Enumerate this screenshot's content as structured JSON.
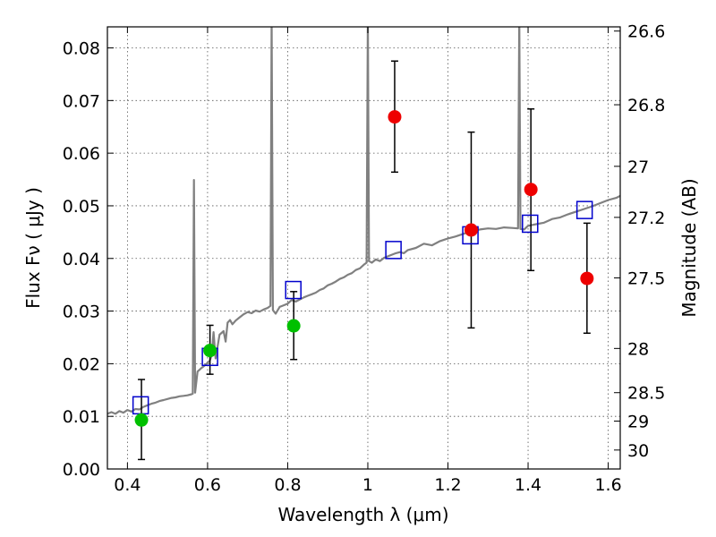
{
  "chart_data": {
    "type": "scatter",
    "xlabel": "Wavelength  λ (μm)",
    "ylabel": "Flux  Fν  ( μJy )",
    "y2label": "Magnitude (AB)",
    "xlim": [
      0.35,
      1.63
    ],
    "ylim": [
      0.0,
      0.084
    ],
    "grid": true,
    "x_ticks": [
      0.4,
      0.6,
      0.8,
      1.0,
      1.2,
      1.4,
      1.6
    ],
    "x_tick_labels": [
      "0.4",
      "0.6",
      "0.8",
      "1",
      "1.2",
      "1.4",
      "1.6"
    ],
    "y_ticks": [
      0.0,
      0.01,
      0.02,
      0.03,
      0.04,
      0.05,
      0.06,
      0.07,
      0.08
    ],
    "y_tick_labels": [
      "0.00",
      "0.01",
      "0.02",
      "0.03",
      "0.04",
      "0.05",
      "0.06",
      "0.07",
      "0.08"
    ],
    "y2_ticks": [
      {
        "label": "26.6",
        "flux": 0.0832
      },
      {
        "label": "26.8",
        "flux": 0.0692
      },
      {
        "label": "27",
        "flux": 0.0575
      },
      {
        "label": "27.2",
        "flux": 0.0478
      },
      {
        "label": "27.5",
        "flux": 0.0363
      },
      {
        "label": "28",
        "flux": 0.0229
      },
      {
        "label": "28.5",
        "flux": 0.0145
      },
      {
        "label": "29",
        "flux": 0.0091
      },
      {
        "label": "30",
        "flux": 0.0036
      }
    ],
    "model_spectrum": [
      [
        0.35,
        0.0105
      ],
      [
        0.36,
        0.0108
      ],
      [
        0.37,
        0.0105
      ],
      [
        0.38,
        0.011
      ],
      [
        0.39,
        0.0107
      ],
      [
        0.4,
        0.0112
      ],
      [
        0.41,
        0.0109
      ],
      [
        0.42,
        0.0114
      ],
      [
        0.43,
        0.0113
      ],
      [
        0.44,
        0.0118
      ],
      [
        0.45,
        0.0121
      ],
      [
        0.46,
        0.0124
      ],
      [
        0.47,
        0.0126
      ],
      [
        0.48,
        0.0129
      ],
      [
        0.49,
        0.0131
      ],
      [
        0.5,
        0.0133
      ],
      [
        0.51,
        0.0135
      ],
      [
        0.52,
        0.0136
      ],
      [
        0.53,
        0.0138
      ],
      [
        0.54,
        0.0139
      ],
      [
        0.55,
        0.014
      ],
      [
        0.56,
        0.0142
      ],
      [
        0.563,
        0.0143
      ],
      [
        0.566,
        0.0549
      ],
      [
        0.569,
        0.0145
      ],
      [
        0.575,
        0.0185
      ],
      [
        0.585,
        0.0192
      ],
      [
        0.595,
        0.0198
      ],
      [
        0.6,
        0.0202
      ],
      [
        0.605,
        0.0205
      ],
      [
        0.61,
        0.0215
      ],
      [
        0.615,
        0.026
      ],
      [
        0.62,
        0.021
      ],
      [
        0.63,
        0.0255
      ],
      [
        0.64,
        0.0262
      ],
      [
        0.645,
        0.0242
      ],
      [
        0.65,
        0.0278
      ],
      [
        0.656,
        0.0283
      ],
      [
        0.662,
        0.0275
      ],
      [
        0.67,
        0.0282
      ],
      [
        0.68,
        0.0288
      ],
      [
        0.69,
        0.0294
      ],
      [
        0.7,
        0.0298
      ],
      [
        0.71,
        0.0296
      ],
      [
        0.72,
        0.0301
      ],
      [
        0.73,
        0.0299
      ],
      [
        0.74,
        0.0303
      ],
      [
        0.75,
        0.0306
      ],
      [
        0.757,
        0.031
      ],
      [
        0.76,
        0.086
      ],
      [
        0.763,
        0.0302
      ],
      [
        0.77,
        0.0295
      ],
      [
        0.78,
        0.0308
      ],
      [
        0.79,
        0.0311
      ],
      [
        0.8,
        0.0314
      ],
      [
        0.81,
        0.0321
      ],
      [
        0.82,
        0.0318
      ],
      [
        0.83,
        0.0322
      ],
      [
        0.84,
        0.0326
      ],
      [
        0.85,
        0.0329
      ],
      [
        0.86,
        0.0332
      ],
      [
        0.87,
        0.0335
      ],
      [
        0.88,
        0.034
      ],
      [
        0.89,
        0.0343
      ],
      [
        0.9,
        0.0349
      ],
      [
        0.91,
        0.0352
      ],
      [
        0.92,
        0.0356
      ],
      [
        0.93,
        0.0361
      ],
      [
        0.94,
        0.0364
      ],
      [
        0.95,
        0.0369
      ],
      [
        0.96,
        0.0372
      ],
      [
        0.97,
        0.0378
      ],
      [
        0.98,
        0.0381
      ],
      [
        0.99,
        0.0388
      ],
      [
        0.997,
        0.0392
      ],
      [
        1.0,
        0.086
      ],
      [
        1.003,
        0.0395
      ],
      [
        1.01,
        0.0392
      ],
      [
        1.02,
        0.0398
      ],
      [
        1.03,
        0.0395
      ],
      [
        1.04,
        0.0401
      ],
      [
        1.05,
        0.0404
      ],
      [
        1.06,
        0.0407
      ],
      [
        1.07,
        0.041
      ],
      [
        1.08,
        0.0412
      ],
      [
        1.09,
        0.041
      ],
      [
        1.1,
        0.0416
      ],
      [
        1.12,
        0.042
      ],
      [
        1.14,
        0.0428
      ],
      [
        1.16,
        0.0425
      ],
      [
        1.18,
        0.0433
      ],
      [
        1.2,
        0.0438
      ],
      [
        1.22,
        0.0442
      ],
      [
        1.24,
        0.0447
      ],
      [
        1.26,
        0.0452
      ],
      [
        1.28,
        0.0455
      ],
      [
        1.3,
        0.0457
      ],
      [
        1.32,
        0.0456
      ],
      [
        1.34,
        0.0459
      ],
      [
        1.36,
        0.0458
      ],
      [
        1.375,
        0.0457
      ],
      [
        1.378,
        0.086
      ],
      [
        1.381,
        0.0456
      ],
      [
        1.39,
        0.0455
      ],
      [
        1.4,
        0.0462
      ],
      [
        1.42,
        0.0465
      ],
      [
        1.44,
        0.0468
      ],
      [
        1.46,
        0.0475
      ],
      [
        1.48,
        0.0478
      ],
      [
        1.5,
        0.0484
      ],
      [
        1.52,
        0.0489
      ],
      [
        1.54,
        0.0494
      ],
      [
        1.56,
        0.0499
      ],
      [
        1.58,
        0.0505
      ],
      [
        1.6,
        0.0511
      ],
      [
        1.62,
        0.0515
      ],
      [
        1.63,
        0.0519
      ]
    ],
    "model_photometry": [
      {
        "x": 0.433,
        "y": 0.0121
      },
      {
        "x": 0.606,
        "y": 0.0213
      },
      {
        "x": 0.814,
        "y": 0.034
      },
      {
        "x": 1.064,
        "y": 0.0416
      },
      {
        "x": 1.256,
        "y": 0.0444
      },
      {
        "x": 1.405,
        "y": 0.0466
      },
      {
        "x": 1.541,
        "y": 0.0492
      }
    ],
    "detections": [
      {
        "x": 0.435,
        "y": 0.0093,
        "err_low": 0.0018,
        "err_high": 0.017
      },
      {
        "x": 0.606,
        "y": 0.0225,
        "err_low": 0.018,
        "err_high": 0.0273
      },
      {
        "x": 0.815,
        "y": 0.0272,
        "err_low": 0.0208,
        "err_high": 0.0337
      }
    ],
    "upper_limits": [
      {
        "x": 1.067,
        "y": 0.0669,
        "err_low": 0.0564,
        "err_high": 0.0775
      },
      {
        "x": 1.258,
        "y": 0.0454,
        "err_low": 0.0268,
        "err_high": 0.064
      },
      {
        "x": 1.407,
        "y": 0.0531,
        "err_low": 0.0377,
        "err_high": 0.0684
      },
      {
        "x": 1.547,
        "y": 0.0362,
        "err_low": 0.0258,
        "err_high": 0.0467
      }
    ],
    "colors": {
      "spectrum": "#808080",
      "model_photometry": "#0000cc",
      "detections": "#00c000",
      "upper_limits": "#ee0000",
      "errorbars": "#000000",
      "grid": "#555555"
    }
  }
}
